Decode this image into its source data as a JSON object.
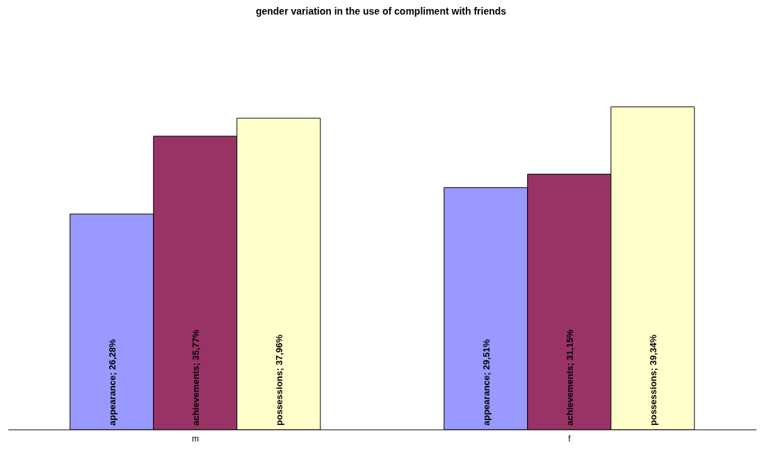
{
  "chart_data": {
    "type": "bar",
    "title": "gender variation in the use of compliment with friends",
    "categories": [
      "m",
      "f"
    ],
    "series": [
      {
        "name": "appearance",
        "color": "#9999ff",
        "values": [
          26.28,
          29.51
        ],
        "value_labels": [
          "; 26,28%",
          "; 29,51%"
        ]
      },
      {
        "name": "achievements",
        "color": "#993366",
        "values": [
          35.77,
          31.15
        ],
        "value_labels": [
          "; 35,77%",
          "; 31,15%"
        ]
      },
      {
        "name": "possessions",
        "color": "#ffffcc",
        "values": [
          37.96,
          39.34
        ],
        "value_labels": [
          "; 37,96%",
          "; 39,34%"
        ]
      }
    ],
    "legend": false,
    "grid": false
  }
}
